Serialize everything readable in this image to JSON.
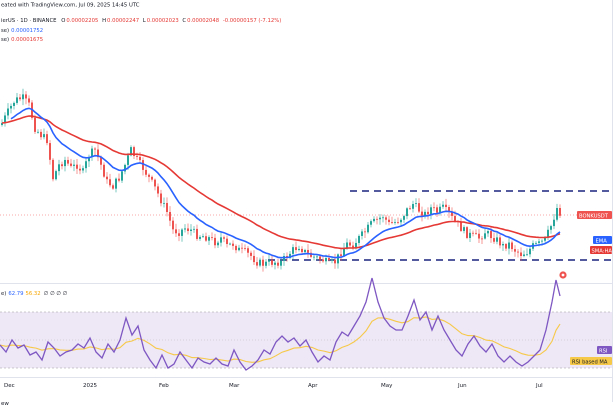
{
  "header": {
    "line1_prefix": "eated with TradingView.com, Jul 09, 2025 14:45 UTC",
    "symbol_line": "ierUS · 1D · BINANCE",
    "ohlc": {
      "o_label": "O",
      "o": "0.00002205",
      "h_label": "H",
      "h": "0.00002247",
      "l_label": "L",
      "l": "0.00002023",
      "c_label": "C",
      "c": "0.00002048",
      "change": "-0.00000157 (-7.12%)"
    },
    "ema_line": {
      "suffix": "se)",
      "value": "0.00001752"
    },
    "sma_line": {
      "suffix": "se)",
      "value": "0.00001675"
    }
  },
  "rsi_header": {
    "prefix": "e)",
    "rsi_value": "62.79",
    "ma_value": "56.32",
    "extra": "∅ ∅ ∅ ∅"
  },
  "tags": {
    "price": "BONKUSDT",
    "ema": "EMA",
    "sma": "SMA:HA",
    "rsi": "RSI",
    "rsi_ma": "RSI based MA"
  },
  "footer": {
    "text": "ew"
  },
  "colors": {
    "up": "#26a69a",
    "down": "#ef5350",
    "ema": "#2962ff",
    "sma": "#e53935",
    "rsi": "#7e57c2",
    "rsi_ma": "#f7c948",
    "support_resist": "#1a237e",
    "rsi_band": "#ede7f6"
  },
  "chart_data": {
    "type": "candlestick",
    "x_ticks": [
      "Dec",
      "2025",
      "Feb",
      "Mar",
      "Apr",
      "May",
      "Jun",
      "Jul"
    ],
    "horizontal_levels": {
      "resistance": "dashed line",
      "support": "dashed line"
    },
    "series": [
      {
        "name": "EMA",
        "values": []
      },
      {
        "name": "SMA:HA",
        "values": []
      },
      {
        "name": "RSI",
        "values": []
      },
      {
        "name": "RSI based MA",
        "values": []
      }
    ]
  }
}
